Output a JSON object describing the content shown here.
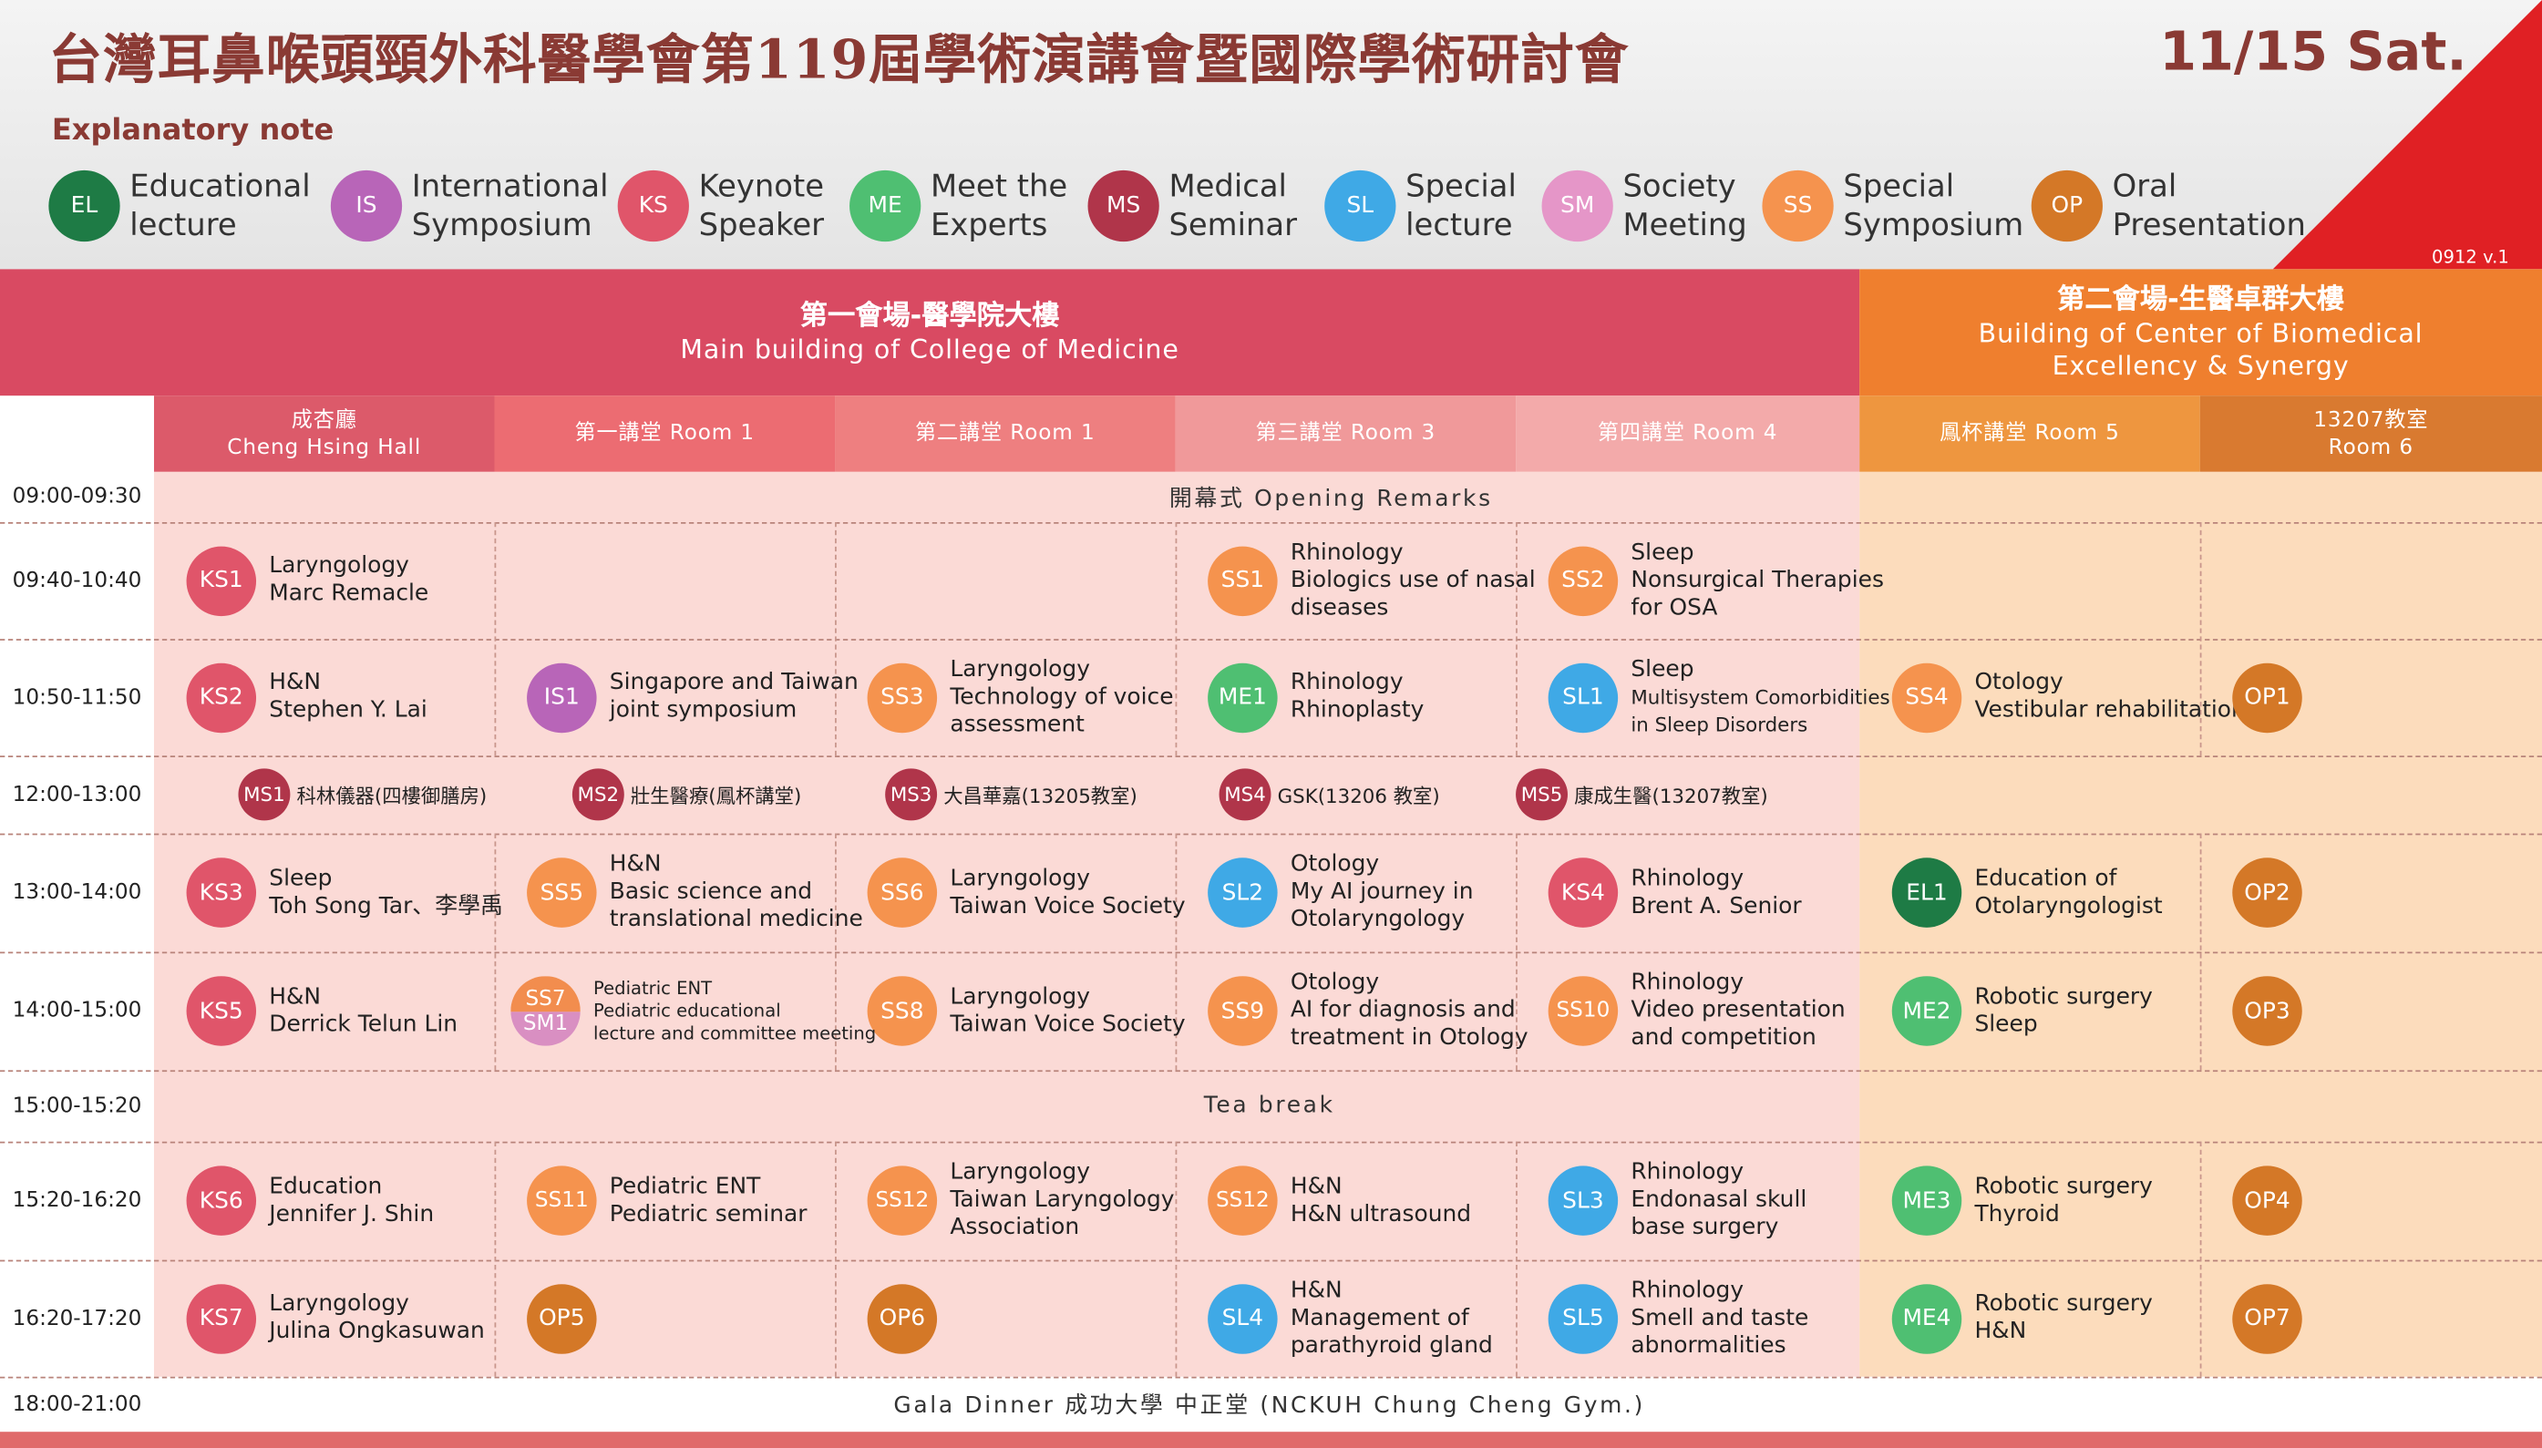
{
  "header": {
    "title": "台灣耳鼻喉頭頸外科醫學會第119屆學術演講會暨國際學術研討會",
    "date": "11/15 Sat.",
    "note_label": "Explanatory note",
    "version": "0912 v.1"
  },
  "legend": [
    {
      "code": "EL",
      "label": "Educational\nlecture",
      "color": "#1e7b45"
    },
    {
      "code": "IS",
      "label": "International\nSymposium",
      "color": "#b865b8"
    },
    {
      "code": "KS",
      "label": "Keynote\nSpeaker",
      "color": "#e0556a"
    },
    {
      "code": "ME",
      "label": "Meet the\nExperts",
      "color": "#4fbf72"
    },
    {
      "code": "MS",
      "label": "Medical\nSeminar",
      "color": "#b0354a"
    },
    {
      "code": "SL",
      "label": "Special\nlecture",
      "color": "#3fa9e6"
    },
    {
      "code": "SM",
      "label": "Society\nMeeting",
      "color": "#e596c8"
    },
    {
      "code": "SS",
      "label": "Special\nSymposium",
      "color": "#f5934e"
    },
    {
      "code": "OP",
      "label": "Oral\nPresentation",
      "color": "#d47827"
    }
  ],
  "venues": {
    "main": {
      "line1": "第一會場-醫學院大樓",
      "line2": "Main building of College of Medicine",
      "color": "#d94a62"
    },
    "side": {
      "line1": "第二會場-生醫卓群大樓",
      "line2": "Building of Center of Biomedical\nExcellency & Synergy",
      "color": "#ef7f2e"
    }
  },
  "rooms": [
    {
      "label": "成杏廳\nCheng Hsing Hall",
      "color": "#dc5a6a"
    },
    {
      "label": "第一講堂 Room 1",
      "color": "#ec6c72"
    },
    {
      "label": "第二講堂 Room 1",
      "color": "#ee7f80"
    },
    {
      "label": "第三講堂 Room 3",
      "color": "#f0999a"
    },
    {
      "label": "第四講堂 Room 4",
      "color": "#f3aaaa"
    },
    {
      "label": "鳳杯講堂 Room 5",
      "color": "#ee963f"
    },
    {
      "label": "13207教室\nRoom 6",
      "color": "#d97a30"
    }
  ],
  "times": [
    "09:00-09:30",
    "09:40-10:40",
    "10:50-11:50",
    "12:00-13:00",
    "13:00-14:00",
    "14:00-15:00",
    "15:00-15:20",
    "15:20-16:20",
    "16:20-17:20",
    "18:00-21:00"
  ],
  "spans": {
    "opening": "開幕式   Opening Remarks",
    "tea": "Tea break",
    "gala": "Gala Dinner 成功大學 中正堂 (NCKUH Chung Cheng Gym.)"
  },
  "sessions": [
    {
      "row": 1,
      "col": 0,
      "code": "KS1",
      "cat": "KS",
      "lines": [
        "Laryngology",
        "Marc Remacle"
      ]
    },
    {
      "row": 1,
      "col": 3,
      "code": "SS1",
      "cat": "SS",
      "lines": [
        "Rhinology",
        "Biologics use of nasal",
        "diseases"
      ]
    },
    {
      "row": 1,
      "col": 4,
      "code": "SS2",
      "cat": "SS",
      "lines": [
        "Sleep",
        "Nonsurgical Therapies",
        "for OSA"
      ]
    },
    {
      "row": 2,
      "col": 0,
      "code": "KS2",
      "cat": "KS",
      "lines": [
        "H&N",
        "Stephen Y. Lai"
      ]
    },
    {
      "row": 2,
      "col": 1,
      "code": "IS1",
      "cat": "IS",
      "lines": [
        "Singapore and Taiwan",
        "joint symposium"
      ]
    },
    {
      "row": 2,
      "col": 2,
      "code": "SS3",
      "cat": "SS",
      "lines": [
        "Laryngology",
        "Technology of voice",
        "assessment"
      ]
    },
    {
      "row": 2,
      "col": 3,
      "code": "ME1",
      "cat": "ME",
      "lines": [
        "Rhinology",
        "Rhinoplasty"
      ]
    },
    {
      "row": 2,
      "col": 4,
      "code": "SL1",
      "cat": "SL",
      "lines": [
        "Sleep",
        "Multisystem Comorbidities",
        "in Sleep Disorders"
      ]
    },
    {
      "row": 2,
      "col": 5,
      "code": "SS4",
      "cat": "SS",
      "lines": [
        "Otology",
        "Vestibular rehabilitation"
      ]
    },
    {
      "row": 2,
      "col": 6,
      "code": "OP1",
      "cat": "OP",
      "lines": []
    },
    {
      "row": 4,
      "col": 0,
      "code": "KS3",
      "cat": "KS",
      "lines": [
        "Sleep",
        "Toh Song Tar、李學禹"
      ]
    },
    {
      "row": 4,
      "col": 1,
      "code": "SS5",
      "cat": "SS",
      "lines": [
        "H&N",
        "Basic science and",
        "translational medicine"
      ]
    },
    {
      "row": 4,
      "col": 2,
      "code": "SS6",
      "cat": "SS",
      "lines": [
        "Laryngology",
        "Taiwan Voice Society"
      ]
    },
    {
      "row": 4,
      "col": 3,
      "code": "SL2",
      "cat": "SL",
      "lines": [
        "Otology",
        "My AI journey in",
        "Otolaryngology"
      ]
    },
    {
      "row": 4,
      "col": 4,
      "code": "KS4",
      "cat": "KS",
      "lines": [
        "Rhinology",
        "Brent A. Senior"
      ]
    },
    {
      "row": 4,
      "col": 5,
      "code": "EL1",
      "cat": "EL",
      "lines": [
        "Education of",
        "Otolaryngologist"
      ]
    },
    {
      "row": 4,
      "col": 6,
      "code": "OP2",
      "cat": "OP",
      "lines": []
    },
    {
      "row": 5,
      "col": 0,
      "code": "KS5",
      "cat": "KS",
      "lines": [
        "H&N",
        "Derrick Telun Lin"
      ]
    },
    {
      "row": 5,
      "col": 2,
      "code": "SS8",
      "cat": "SS",
      "lines": [
        "Laryngology",
        "Taiwan Voice Society"
      ]
    },
    {
      "row": 5,
      "col": 3,
      "code": "SS9",
      "cat": "SS",
      "lines": [
        "Otology",
        "AI for diagnosis and",
        "treatment in Otology"
      ]
    },
    {
      "row": 5,
      "col": 4,
      "code": "SS10",
      "cat": "SS",
      "lines": [
        "Rhinology",
        "Video presentation",
        "and competition"
      ]
    },
    {
      "row": 5,
      "col": 5,
      "code": "ME2",
      "cat": "ME",
      "lines": [
        "Robotic surgery",
        "Sleep"
      ]
    },
    {
      "row": 5,
      "col": 6,
      "code": "OP3",
      "cat": "OP",
      "lines": []
    },
    {
      "row": 7,
      "col": 0,
      "code": "KS6",
      "cat": "KS",
      "lines": [
        "Education",
        "Jennifer J. Shin"
      ]
    },
    {
      "row": 7,
      "col": 1,
      "code": "SS11",
      "cat": "SS",
      "lines": [
        "Pediatric ENT",
        "Pediatric seminar"
      ]
    },
    {
      "row": 7,
      "col": 2,
      "code": "SS12",
      "cat": "SS",
      "lines": [
        "Laryngology",
        "Taiwan Laryngology",
        "Association"
      ]
    },
    {
      "row": 7,
      "col": 3,
      "code": "SS12",
      "cat": "SS",
      "lines": [
        "H&N",
        "H&N ultrasound"
      ]
    },
    {
      "row": 7,
      "col": 4,
      "code": "SL3",
      "cat": "SL",
      "lines": [
        "Rhinology",
        "Endonasal skull",
        "base surgery"
      ]
    },
    {
      "row": 7,
      "col": 5,
      "code": "ME3",
      "cat": "ME",
      "lines": [
        "Robotic surgery",
        "Thyroid"
      ]
    },
    {
      "row": 7,
      "col": 6,
      "code": "OP4",
      "cat": "OP",
      "lines": []
    },
    {
      "row": 8,
      "col": 0,
      "code": "KS7",
      "cat": "KS",
      "lines": [
        "Laryngology",
        "Julina Ongkasuwan"
      ]
    },
    {
      "row": 8,
      "col": 1,
      "code": "OP5",
      "cat": "OP",
      "lines": []
    },
    {
      "row": 8,
      "col": 2,
      "code": "OP6",
      "cat": "OP",
      "lines": []
    },
    {
      "row": 8,
      "col": 3,
      "code": "SL4",
      "cat": "SL",
      "lines": [
        "H&N",
        "Management of",
        "parathyroid gland"
      ]
    },
    {
      "row": 8,
      "col": 4,
      "code": "SL5",
      "cat": "SL",
      "lines": [
        "Rhinology",
        "Smell and taste",
        "abnormalities"
      ]
    },
    {
      "row": 8,
      "col": 5,
      "code": "ME4",
      "cat": "ME",
      "lines": [
        "Robotic surgery",
        "H&N"
      ]
    },
    {
      "row": 8,
      "col": 6,
      "code": "OP7",
      "cat": "OP",
      "lines": []
    }
  ],
  "split_session": {
    "code_top": "SS7",
    "code_bottom": "SM1",
    "lines": [
      "Pediatric ENT",
      "Pediatric educational",
      "lecture and committee meeting"
    ]
  },
  "seminars": [
    {
      "code": "MS1",
      "text": "科林儀器(四樓御膳房)"
    },
    {
      "code": "MS2",
      "text": "壯生醫療(鳳杯講堂)"
    },
    {
      "code": "MS3",
      "text": "大昌華嘉(13205教室)"
    },
    {
      "code": "MS4",
      "text": "GSK(13206 教室)"
    },
    {
      "code": "MS5",
      "text": "康成生醫(13207教室)"
    }
  ]
}
